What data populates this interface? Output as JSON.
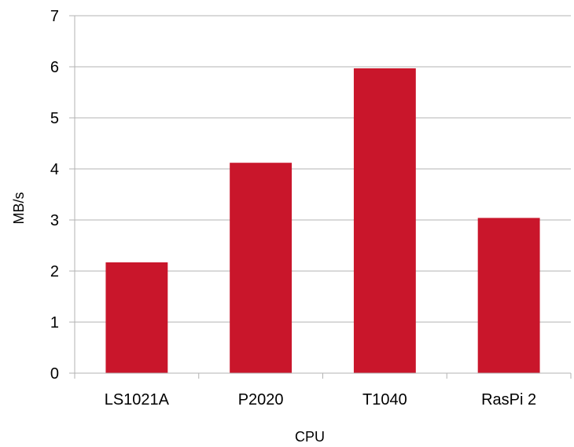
{
  "chart_data": {
    "type": "bar",
    "categories": [
      "LS1021A",
      "P2020",
      "T1040",
      "RasPi 2"
    ],
    "values": [
      2.17,
      4.12,
      5.97,
      3.04
    ],
    "xlabel": "CPU",
    "ylabel": "MB/s",
    "ylim": [
      0,
      7
    ],
    "yticks": [
      0,
      1,
      2,
      3,
      4,
      5,
      6,
      7
    ],
    "grid": true,
    "legend": "none",
    "bar_color": "#c9162b"
  }
}
